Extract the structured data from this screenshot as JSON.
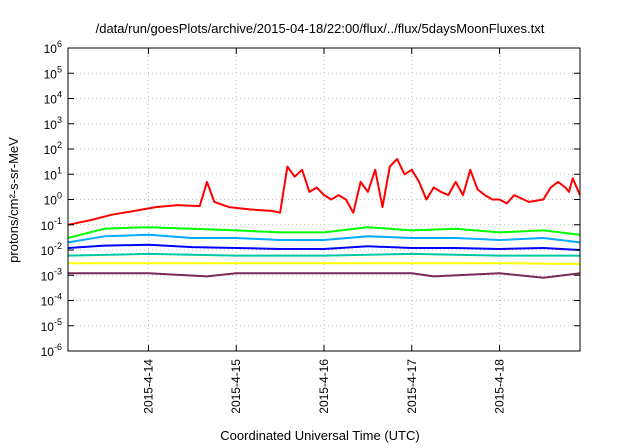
{
  "chart_data": {
    "type": "line",
    "title": "/data/run/goesPlots/archive/2015-04-18/22:00/flux/../flux/5daysMoonFluxes.txt",
    "xlabel": "Coordinated Universal Time (UTC)",
    "ylabel": "protons/cm²-s-sr-MeV",
    "y_scale": "log",
    "ylim": [
      1e-06,
      1000000.0
    ],
    "y_ticks": [
      {
        "value": -6,
        "base": "10",
        "exp": "-6"
      },
      {
        "value": -5,
        "base": "10",
        "exp": "-5"
      },
      {
        "value": -4,
        "base": "10",
        "exp": "-4"
      },
      {
        "value": -3,
        "base": "10",
        "exp": "-3"
      },
      {
        "value": -2,
        "base": "10",
        "exp": "-2"
      },
      {
        "value": -1,
        "base": "10",
        "exp": "-1"
      },
      {
        "value": 0,
        "base": "10",
        "exp": "0"
      },
      {
        "value": 1,
        "base": "10",
        "exp": "1"
      },
      {
        "value": 2,
        "base": "10",
        "exp": "2"
      },
      {
        "value": 3,
        "base": "10",
        "exp": "3"
      },
      {
        "value": 4,
        "base": "10",
        "exp": "4"
      },
      {
        "value": 5,
        "base": "10",
        "exp": "5"
      },
      {
        "value": 6,
        "base": "10",
        "exp": "6"
      }
    ],
    "x_range": [
      "2015-04-13 02:00",
      "2015-04-18 22:00"
    ],
    "x_tick_labels": [
      "2015-4-14",
      "2015-4-15",
      "2015-4-16",
      "2015-4-17",
      "2015-4-18"
    ],
    "grid": true,
    "legend": "none",
    "series": [
      {
        "color": "#ff0000",
        "x": [
          "2015-04-13 02:00",
          "2015-04-13 08:00",
          "2015-04-13 14:00",
          "2015-04-13 20:00",
          "2015-04-14 02:00",
          "2015-04-14 08:00",
          "2015-04-14 14:00",
          "2015-04-14 16:00",
          "2015-04-14 18:00",
          "2015-04-14 22:00",
          "2015-04-15 04:00",
          "2015-04-15 10:00",
          "2015-04-15 12:00",
          "2015-04-15 14:00",
          "2015-04-15 16:00",
          "2015-04-15 18:00",
          "2015-04-15 20:00",
          "2015-04-15 22:00",
          "2015-04-16 00:00",
          "2015-04-16 02:00",
          "2015-04-16 04:00",
          "2015-04-16 06:00",
          "2015-04-16 08:00",
          "2015-04-16 10:00",
          "2015-04-16 12:00",
          "2015-04-16 14:00",
          "2015-04-16 16:00",
          "2015-04-16 18:00",
          "2015-04-16 20:00",
          "2015-04-16 22:00",
          "2015-04-17 00:00",
          "2015-04-17 02:00",
          "2015-04-17 04:00",
          "2015-04-17 06:00",
          "2015-04-17 08:00",
          "2015-04-17 10:00",
          "2015-04-17 12:00",
          "2015-04-17 14:00",
          "2015-04-17 16:00",
          "2015-04-17 18:00",
          "2015-04-17 20:00",
          "2015-04-17 22:00",
          "2015-04-18 00:00",
          "2015-04-18 02:00",
          "2015-04-18 04:00",
          "2015-04-18 08:00",
          "2015-04-18 12:00",
          "2015-04-18 14:00",
          "2015-04-18 16:00",
          "2015-04-18 18:00",
          "2015-04-18 19:00",
          "2015-04-18 20:00",
          "2015-04-18 22:00"
        ],
        "values": [
          0.1,
          0.15,
          0.25,
          0.35,
          0.5,
          0.6,
          0.55,
          5,
          0.8,
          0.5,
          0.4,
          0.35,
          0.3,
          20,
          8,
          15,
          2,
          3,
          1.5,
          1,
          1.5,
          1,
          0.3,
          5,
          2,
          15,
          0.5,
          20,
          40,
          10,
          15,
          5,
          1,
          3,
          2,
          1.5,
          5,
          1.5,
          15,
          2.5,
          1.5,
          1,
          1,
          0.7,
          1.5,
          0.8,
          1,
          3,
          5,
          3,
          2,
          7,
          1.5
        ]
      },
      {
        "color": "#00ff00",
        "x": [
          "2015-04-13 02:00",
          "2015-04-13 12:00",
          "2015-04-14 00:00",
          "2015-04-14 12:00",
          "2015-04-15 00:00",
          "2015-04-15 12:00",
          "2015-04-16 00:00",
          "2015-04-16 12:00",
          "2015-04-17 00:00",
          "2015-04-17 12:00",
          "2015-04-18 00:00",
          "2015-04-18 12:00",
          "2015-04-18 22:00"
        ],
        "values": [
          0.03,
          0.07,
          0.08,
          0.07,
          0.06,
          0.05,
          0.05,
          0.08,
          0.06,
          0.07,
          0.05,
          0.06,
          0.04
        ]
      },
      {
        "color": "#00aaff",
        "x": [
          "2015-04-13 02:00",
          "2015-04-13 12:00",
          "2015-04-14 00:00",
          "2015-04-14 12:00",
          "2015-04-15 00:00",
          "2015-04-15 12:00",
          "2015-04-16 00:00",
          "2015-04-16 12:00",
          "2015-04-17 00:00",
          "2015-04-17 12:00",
          "2015-04-18 00:00",
          "2015-04-18 12:00",
          "2015-04-18 22:00"
        ],
        "values": [
          0.02,
          0.035,
          0.04,
          0.03,
          0.03,
          0.025,
          0.025,
          0.035,
          0.03,
          0.03,
          0.025,
          0.03,
          0.02
        ]
      },
      {
        "color": "#0000ff",
        "x": [
          "2015-04-13 02:00",
          "2015-04-13 12:00",
          "2015-04-14 00:00",
          "2015-04-14 12:00",
          "2015-04-15 00:00",
          "2015-04-15 12:00",
          "2015-04-16 00:00",
          "2015-04-16 12:00",
          "2015-04-17 00:00",
          "2015-04-17 12:00",
          "2015-04-18 00:00",
          "2015-04-18 12:00",
          "2015-04-18 22:00"
        ],
        "values": [
          0.012,
          0.015,
          0.016,
          0.013,
          0.012,
          0.011,
          0.011,
          0.014,
          0.012,
          0.012,
          0.011,
          0.012,
          0.01
        ]
      },
      {
        "color": "#00c8a0",
        "x": [
          "2015-04-13 02:00",
          "2015-04-14 00:00",
          "2015-04-15 00:00",
          "2015-04-16 00:00",
          "2015-04-17 00:00",
          "2015-04-18 00:00",
          "2015-04-18 22:00"
        ],
        "values": [
          0.006,
          0.007,
          0.006,
          0.006,
          0.007,
          0.006,
          0.006
        ]
      },
      {
        "color": "#ffff00",
        "x": [
          "2015-04-13 02:00",
          "2015-04-14 00:00",
          "2015-04-15 00:00",
          "2015-04-16 00:00",
          "2015-04-17 00:00",
          "2015-04-18 00:00",
          "2015-04-18 22:00"
        ],
        "values": [
          0.003,
          0.003,
          0.003,
          0.003,
          0.003,
          0.003,
          0.0028
        ]
      },
      {
        "color": "#7a2a5a",
        "x": [
          "2015-04-13 02:00",
          "2015-04-14 00:00",
          "2015-04-14 16:00",
          "2015-04-15 00:00",
          "2015-04-16 00:00",
          "2015-04-17 00:00",
          "2015-04-17 06:00",
          "2015-04-18 00:00",
          "2015-04-18 12:00",
          "2015-04-18 22:00"
        ],
        "values": [
          0.0012,
          0.0012,
          0.0009,
          0.0012,
          0.0012,
          0.0012,
          0.0009,
          0.0012,
          0.0008,
          0.0012
        ]
      }
    ]
  }
}
